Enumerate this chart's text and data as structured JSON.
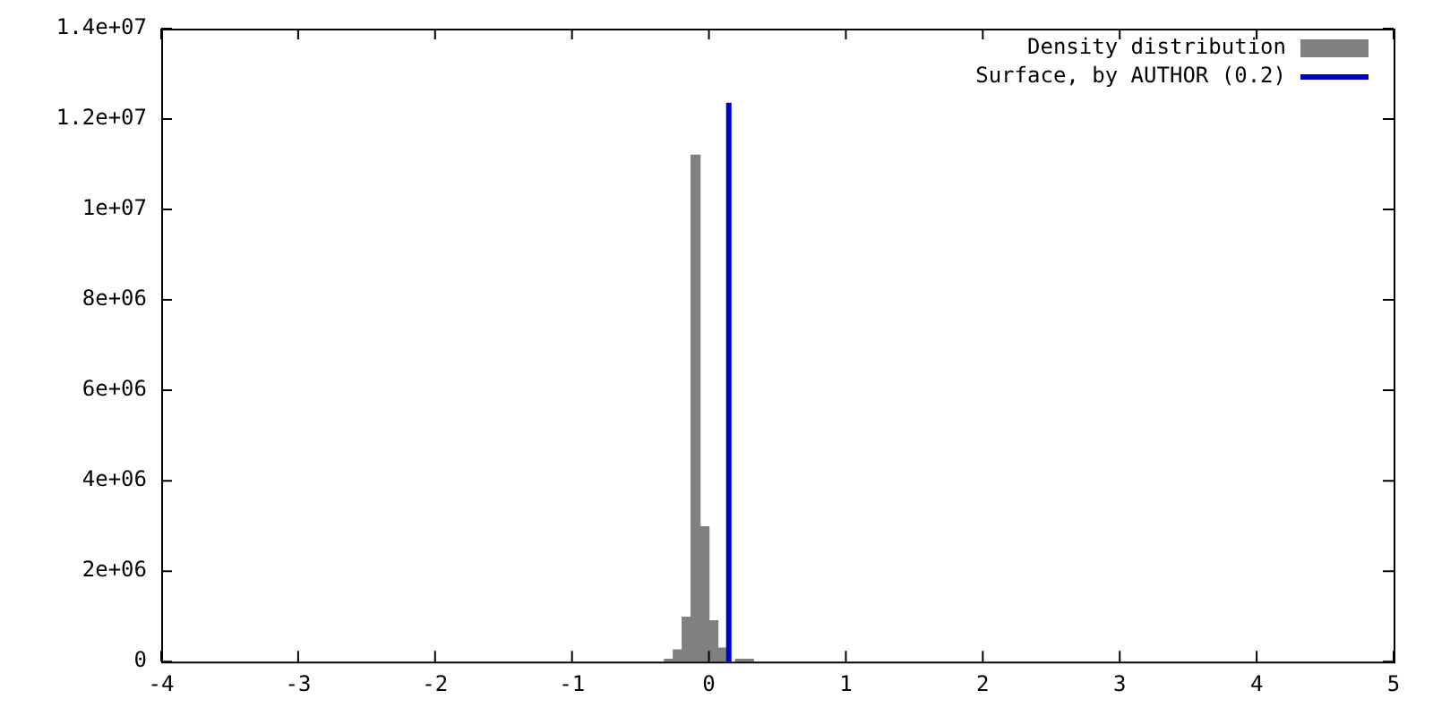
{
  "chart_data": {
    "type": "histogram",
    "bins": [
      -0.325,
      -0.26,
      -0.195,
      -0.13,
      -0.065,
      0,
      0.065,
      0.13,
      0.195,
      0.26,
      0.325
    ],
    "series": [
      {
        "name": "Density distribution",
        "color": "#808080",
        "values": [
          50000,
          260000,
          980000,
          11200000,
          2980000,
          900000,
          300000,
          null,
          50000,
          50000
        ]
      },
      {
        "name": "Surface, by AUTHOR (0.2)",
        "type": "line",
        "color": "#0000cc",
        "x": [
          0.145,
          0.145
        ],
        "values": [
          0,
          12360000
        ]
      }
    ],
    "xlim": [
      -4,
      5
    ],
    "xticks": [
      -4,
      -3,
      -2,
      -1,
      0,
      1,
      2,
      3,
      4,
      5
    ],
    "ylim": [
      0,
      14000000
    ],
    "yticks": [
      {
        "value": 0,
        "label": "0"
      },
      {
        "value": 2000000,
        "label": "2e+06"
      },
      {
        "value": 4000000,
        "label": "4e+06"
      },
      {
        "value": 6000000,
        "label": "6e+06"
      },
      {
        "value": 8000000,
        "label": "8e+06"
      },
      {
        "value": 10000000,
        "label": "1e+07"
      },
      {
        "value": 12000000,
        "label": "1.2e+07"
      },
      {
        "value": 14000000,
        "label": "1.4e+07"
      }
    ],
    "grid": false,
    "legend": "top right"
  }
}
